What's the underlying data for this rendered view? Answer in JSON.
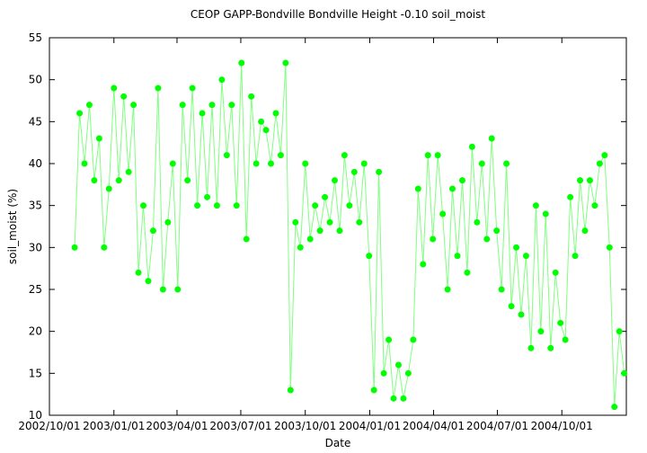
{
  "chart_data": {
    "type": "line",
    "title": "CEOP GAPP-Bondville Bondville Height -0.10 soil_moist",
    "x_label": "Date",
    "y_label": "soil_moist (%)",
    "color": "#00ff00",
    "line_color": "#80ff80",
    "markers": true,
    "grid": false,
    "xlim": [
      "2002/10/01",
      "2005/01/01"
    ],
    "xticks": [
      "2002/10/01",
      "2003/01/01",
      "2003/04/01",
      "2003/07/01",
      "2003/10/01",
      "2004/01/01",
      "2004/04/01",
      "2004/07/01",
      "2004/10/01"
    ],
    "ylim": [
      10,
      55
    ],
    "yticks": [
      10,
      15,
      20,
      25,
      30,
      35,
      40,
      45,
      50,
      55
    ],
    "x": [
      "2002/11/06",
      "2002/11/13",
      "2002/11/20",
      "2002/11/27",
      "2002/12/04",
      "2002/12/11",
      "2002/12/18",
      "2002/12/25",
      "2003/01/01",
      "2003/01/08",
      "2003/01/15",
      "2003/01/22",
      "2003/01/29",
      "2003/02/05",
      "2003/02/12",
      "2003/02/19",
      "2003/02/26",
      "2003/03/05",
      "2003/03/12",
      "2003/03/19",
      "2003/03/26",
      "2003/04/02",
      "2003/04/09",
      "2003/04/16",
      "2003/04/23",
      "2003/04/30",
      "2003/05/07",
      "2003/05/14",
      "2003/05/21",
      "2003/05/28",
      "2003/06/04",
      "2003/06/11",
      "2003/06/18",
      "2003/06/25",
      "2003/07/02",
      "2003/07/09",
      "2003/07/16",
      "2003/07/23",
      "2003/07/30",
      "2003/08/06",
      "2003/08/13",
      "2003/08/20",
      "2003/08/27",
      "2003/09/03",
      "2003/09/10",
      "2003/09/17",
      "2003/09/24",
      "2003/10/01",
      "2003/10/08",
      "2003/10/15",
      "2003/10/22",
      "2003/10/29",
      "2003/11/05",
      "2003/11/12",
      "2003/11/19",
      "2003/11/26",
      "2003/12/03",
      "2003/12/10",
      "2003/12/17",
      "2003/12/24",
      "2003/12/31",
      "2004/01/07",
      "2004/01/14",
      "2004/01/21",
      "2004/01/28",
      "2004/02/04",
      "2004/02/11",
      "2004/02/18",
      "2004/02/25",
      "2004/03/03",
      "2004/03/10",
      "2004/03/17",
      "2004/03/24",
      "2004/03/31",
      "2004/04/07",
      "2004/04/14",
      "2004/04/21",
      "2004/04/28",
      "2004/05/05",
      "2004/05/12",
      "2004/05/19",
      "2004/05/26",
      "2004/06/02",
      "2004/06/09",
      "2004/06/16",
      "2004/06/23",
      "2004/06/30",
      "2004/07/07",
      "2004/07/14",
      "2004/07/21",
      "2004/07/28",
      "2004/08/04",
      "2004/08/11",
      "2004/08/18",
      "2004/08/25",
      "2004/09/01",
      "2004/09/08",
      "2004/09/15",
      "2004/09/22",
      "2004/09/29",
      "2004/10/06",
      "2004/10/13",
      "2004/10/20",
      "2004/10/27",
      "2004/11/03",
      "2004/11/10",
      "2004/11/17",
      "2004/11/24",
      "2004/12/01",
      "2004/12/08",
      "2004/12/15",
      "2004/12/22",
      "2004/12/29"
    ],
    "values": [
      30,
      46,
      40,
      47,
      38,
      43,
      30,
      37,
      49,
      38,
      48,
      39,
      47,
      27,
      35,
      26,
      32,
      49,
      25,
      33,
      40,
      25,
      47,
      38,
      49,
      35,
      46,
      36,
      47,
      35,
      50,
      41,
      47,
      35,
      52,
      31,
      48,
      40,
      45,
      44,
      40,
      46,
      41,
      52,
      13,
      33,
      30,
      40,
      31,
      35,
      32,
      36,
      33,
      38,
      32,
      41,
      35,
      39,
      33,
      40,
      29,
      13,
      39,
      15,
      19,
      12,
      16,
      12,
      15,
      19,
      37,
      28,
      41,
      31,
      41,
      34,
      25,
      37,
      29,
      38,
      27,
      42,
      33,
      40,
      31,
      43,
      32,
      25,
      40,
      23,
      30,
      22,
      29,
      18,
      35,
      20,
      34,
      18,
      27,
      21,
      19,
      36,
      29,
      38,
      32,
      38,
      35,
      40,
      41,
      30,
      11,
      20,
      15
    ]
  }
}
